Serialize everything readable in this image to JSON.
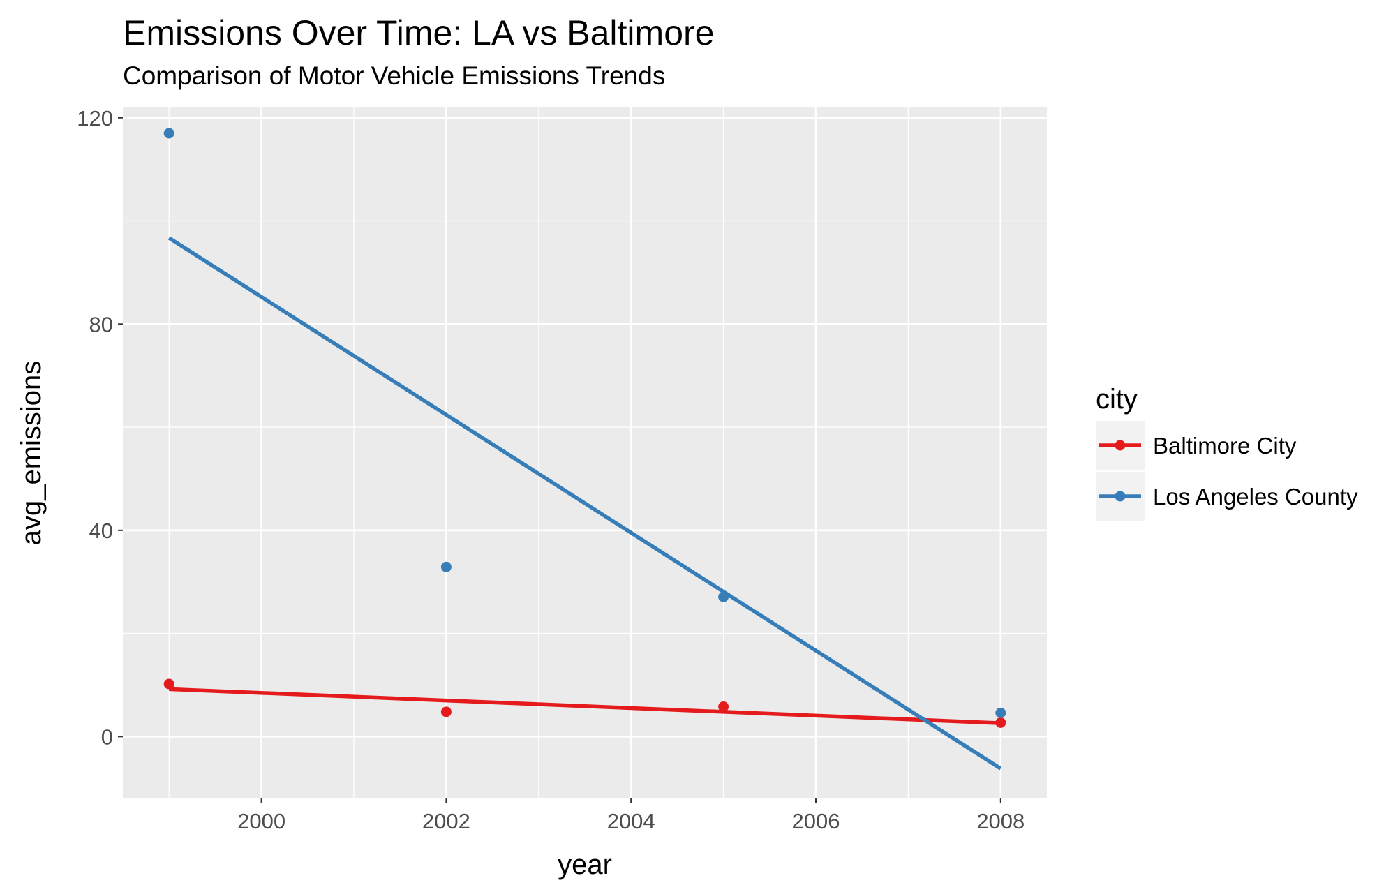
{
  "chart_data": {
    "type": "scatter",
    "title": "Emissions Over Time: LA vs Baltimore",
    "subtitle": "Comparison of Motor Vehicle Emissions Trends",
    "xlabel": "year",
    "ylabel": "avg_emissions",
    "xlim": [
      1998.5,
      2008.5
    ],
    "ylim": [
      -12,
      122
    ],
    "x_ticks": [
      2000,
      2002,
      2004,
      2006,
      2008
    ],
    "y_ticks": [
      0,
      40,
      80,
      120
    ],
    "grid": true,
    "legend": {
      "title": "city",
      "position": "right"
    },
    "series": [
      {
        "name": "Baltimore City",
        "color": "#E41A1C",
        "points": [
          [
            1999,
            10.2
          ],
          [
            2002,
            4.8
          ],
          [
            2005,
            5.8
          ],
          [
            2008,
            2.7
          ]
        ],
        "trend_line": [
          [
            1999,
            9.2
          ],
          [
            2008,
            2.6
          ]
        ]
      },
      {
        "name": "Los Angeles County",
        "color": "#377EB8",
        "points": [
          [
            1999,
            117
          ],
          [
            2002,
            32.9
          ],
          [
            2005,
            27.1
          ],
          [
            2008,
            4.6
          ]
        ],
        "trend_line": [
          [
            1999,
            96.7
          ],
          [
            2008,
            -6.2
          ]
        ]
      }
    ]
  }
}
